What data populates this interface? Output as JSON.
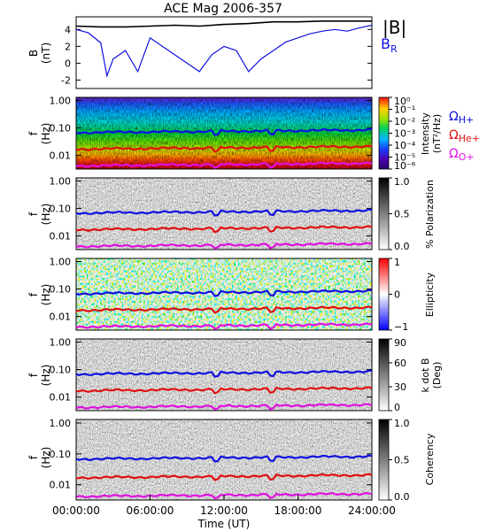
{
  "chart_data": [
    {
      "type": "line",
      "title": "ACE Mag 2006-357",
      "ylabel": "B",
      "yunit": "(nT)",
      "ylim": [
        -3,
        5.5
      ],
      "yticks": [
        4,
        2,
        0,
        -2
      ],
      "xlim": [
        0,
        24
      ],
      "series": [
        {
          "name": "|B|",
          "color": "#000000",
          "x": [
            0,
            2,
            4,
            6,
            8,
            10,
            12,
            14,
            16,
            18,
            20,
            22,
            24
          ],
          "y": [
            4.4,
            4.3,
            4.3,
            4.4,
            4.5,
            4.4,
            4.6,
            4.7,
            4.9,
            4.9,
            5.0,
            5.0,
            5.0
          ]
        },
        {
          "name": "B",
          "subscript": "R",
          "color": "#1010e0",
          "x": [
            0,
            1,
            2,
            2.5,
            3,
            4,
            5,
            6,
            7,
            8,
            9,
            10,
            11,
            12,
            13,
            14,
            15,
            16,
            17,
            18,
            19,
            20,
            21,
            22,
            23,
            24
          ],
          "y": [
            4.0,
            3.6,
            2.4,
            -1.5,
            0.5,
            1.5,
            -1.0,
            3.0,
            2.0,
            1.0,
            0.0,
            -1.0,
            1.0,
            2.0,
            1.5,
            -1.0,
            0.5,
            1.5,
            2.5,
            3.0,
            3.5,
            3.8,
            4.0,
            3.8,
            4.2,
            4.5
          ]
        }
      ]
    },
    {
      "type": "heatmap",
      "ylabel": "f",
      "yunit": "(Hz)",
      "yscale": "log",
      "yticks": [
        "1.00",
        "0.10",
        "0.01"
      ],
      "colorbar": {
        "label": "Intensity",
        "unit": "(nT²/Hz)",
        "ticks": [
          "10⁰",
          "10⁻¹",
          "10⁻²",
          "10⁻³",
          "10⁻⁴",
          "10⁻⁵",
          "10⁻⁶"
        ],
        "scale": "log"
      },
      "overlays": [
        {
          "name": "Ω",
          "subscript": "H+",
          "color": "#1010e0",
          "freq_hz": 0.068
        },
        {
          "name": "Ω",
          "subscript": "He+",
          "color": "#e01010",
          "freq_hz": 0.017
        },
        {
          "name": "Ω",
          "subscript": "O+",
          "color": "#e010e0",
          "freq_hz": 0.0042
        }
      ]
    },
    {
      "type": "heatmap",
      "ylabel": "f",
      "yunit": "(Hz)",
      "yscale": "log",
      "yticks": [
        "1.00",
        "0.10",
        "0.01"
      ],
      "colorbar": {
        "label": "% Polarization",
        "ticks": [
          "1.0",
          "0.5",
          "0.0"
        ],
        "range": [
          0,
          1
        ]
      }
    },
    {
      "type": "heatmap",
      "ylabel": "f",
      "yunit": "(Hz)",
      "yscale": "log",
      "yticks": [
        "1.00",
        "0.10",
        "0.01"
      ],
      "colorbar": {
        "label": "Ellipticity",
        "ticks": [
          "1",
          "0",
          "−1"
        ],
        "range": [
          -1,
          1
        ]
      }
    },
    {
      "type": "heatmap",
      "ylabel": "f",
      "yunit": "(Hz)",
      "yscale": "log",
      "yticks": [
        "1.00",
        "0.10",
        "0.01"
      ],
      "colorbar": {
        "label": "k dot B",
        "unit": "(Deg)",
        "ticks": [
          "90",
          "60",
          "30",
          "0"
        ],
        "range": [
          0,
          90
        ]
      }
    },
    {
      "type": "heatmap",
      "ylabel": "f",
      "yunit": "(Hz)",
      "yscale": "log",
      "yticks": [
        "1.00",
        "0.10",
        "0.01"
      ],
      "colorbar": {
        "label": "Coherency",
        "ticks": [
          "1.0",
          "0.5",
          "0.0"
        ],
        "range": [
          0,
          1
        ]
      }
    }
  ],
  "xaxis": {
    "label": "Time (UT)",
    "ticks": [
      "00:00:00",
      "06:00:00",
      "12:00:00",
      "18:00:00",
      "24:00:00"
    ],
    "range_hours": [
      0,
      24
    ]
  },
  "colors": {
    "hplus": "#1010e0",
    "heplus": "#e01010",
    "oplus": "#e010e0",
    "b_total": "#000000",
    "b_r": "#1010e0"
  }
}
